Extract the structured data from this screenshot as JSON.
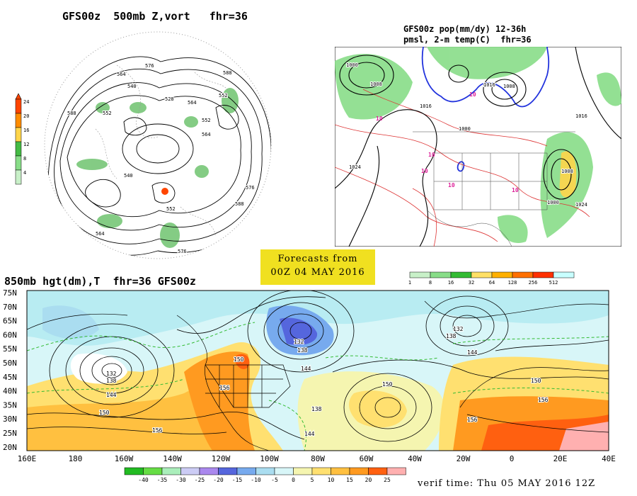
{
  "polar_panel": {
    "title": "GFS00z  500mb Z,vort   fhr=36",
    "colorbar_ticks": [
      "24",
      "20",
      "16",
      "12",
      "8",
      "4"
    ],
    "colorbar_colors": [
      "#ff4500",
      "#ff8c00",
      "#ffd54a",
      "#44bb44",
      "#88dd88",
      "#c8f0c8"
    ],
    "contour_labels": [
      "576",
      "588",
      "564",
      "552",
      "540",
      "528",
      "552",
      "564",
      "588",
      "540",
      "576",
      "564",
      "552",
      "588",
      "576",
      "552",
      "564"
    ]
  },
  "precip_panel": {
    "title_line1": "GFS00z pop(mm/dy) 12-36h",
    "title_line2": "pmsl, 2-m temp(C)  fhr=36",
    "isobar_labels": [
      "1000",
      "1008",
      "1016",
      "1024",
      "1016",
      "1008",
      "1000",
      "1008",
      "1016",
      "1024",
      "1000"
    ],
    "temp_labels": [
      "10",
      "10",
      "10",
      "10",
      "10",
      "10"
    ],
    "colorbar_ticks": [
      "1",
      "8",
      "16",
      "32",
      "64",
      "128",
      "256",
      "512"
    ],
    "colorbar_colors": [
      "#c8f0c8",
      "#88dd88",
      "#33bb33",
      "#ffe066",
      "#ffb000",
      "#ff7000",
      "#ff3000",
      "#c8ffff"
    ]
  },
  "center_box": {
    "line1": "Forecasts from",
    "line2": "00Z 04 MAY 2016",
    "background": "#f0e020"
  },
  "main_panel": {
    "title": "850mb hgt(dm),T  fhr=36 GFS00z",
    "lat_labels": [
      "75N",
      "70N",
      "65N",
      "60N",
      "55N",
      "50N",
      "45N",
      "40N",
      "35N",
      "30N",
      "25N",
      "20N"
    ],
    "lon_labels": [
      "160E",
      "180",
      "160W",
      "140W",
      "120W",
      "100W",
      "80W",
      "60W",
      "40W",
      "20W",
      "0",
      "20E",
      "40E"
    ],
    "height_labels": [
      "132",
      "138",
      "144",
      "150",
      "156",
      "132",
      "138",
      "144",
      "150",
      "156",
      "132",
      "138",
      "144",
      "150",
      "156",
      "138",
      "144",
      "150",
      "156"
    ],
    "colorbar_ticks": [
      "-40",
      "-35",
      "-30",
      "-25",
      "-20",
      "-15",
      "-10",
      "-5",
      "0",
      "5",
      "10",
      "15",
      "20",
      "25"
    ],
    "colorbar_colors": [
      "#22bb22",
      "#66dd44",
      "#aaeebb",
      "#ccccf5",
      "#aa88ee",
      "#5566dd",
      "#77aaee",
      "#aaddf0",
      "#d8f6f8",
      "#f5f5b0",
      "#ffe070",
      "#ffc040",
      "#ff9a20",
      "#ff6010",
      "#ffb0b0"
    ],
    "verif_time": "verif time: Thu 05 MAY 2016 12Z"
  }
}
